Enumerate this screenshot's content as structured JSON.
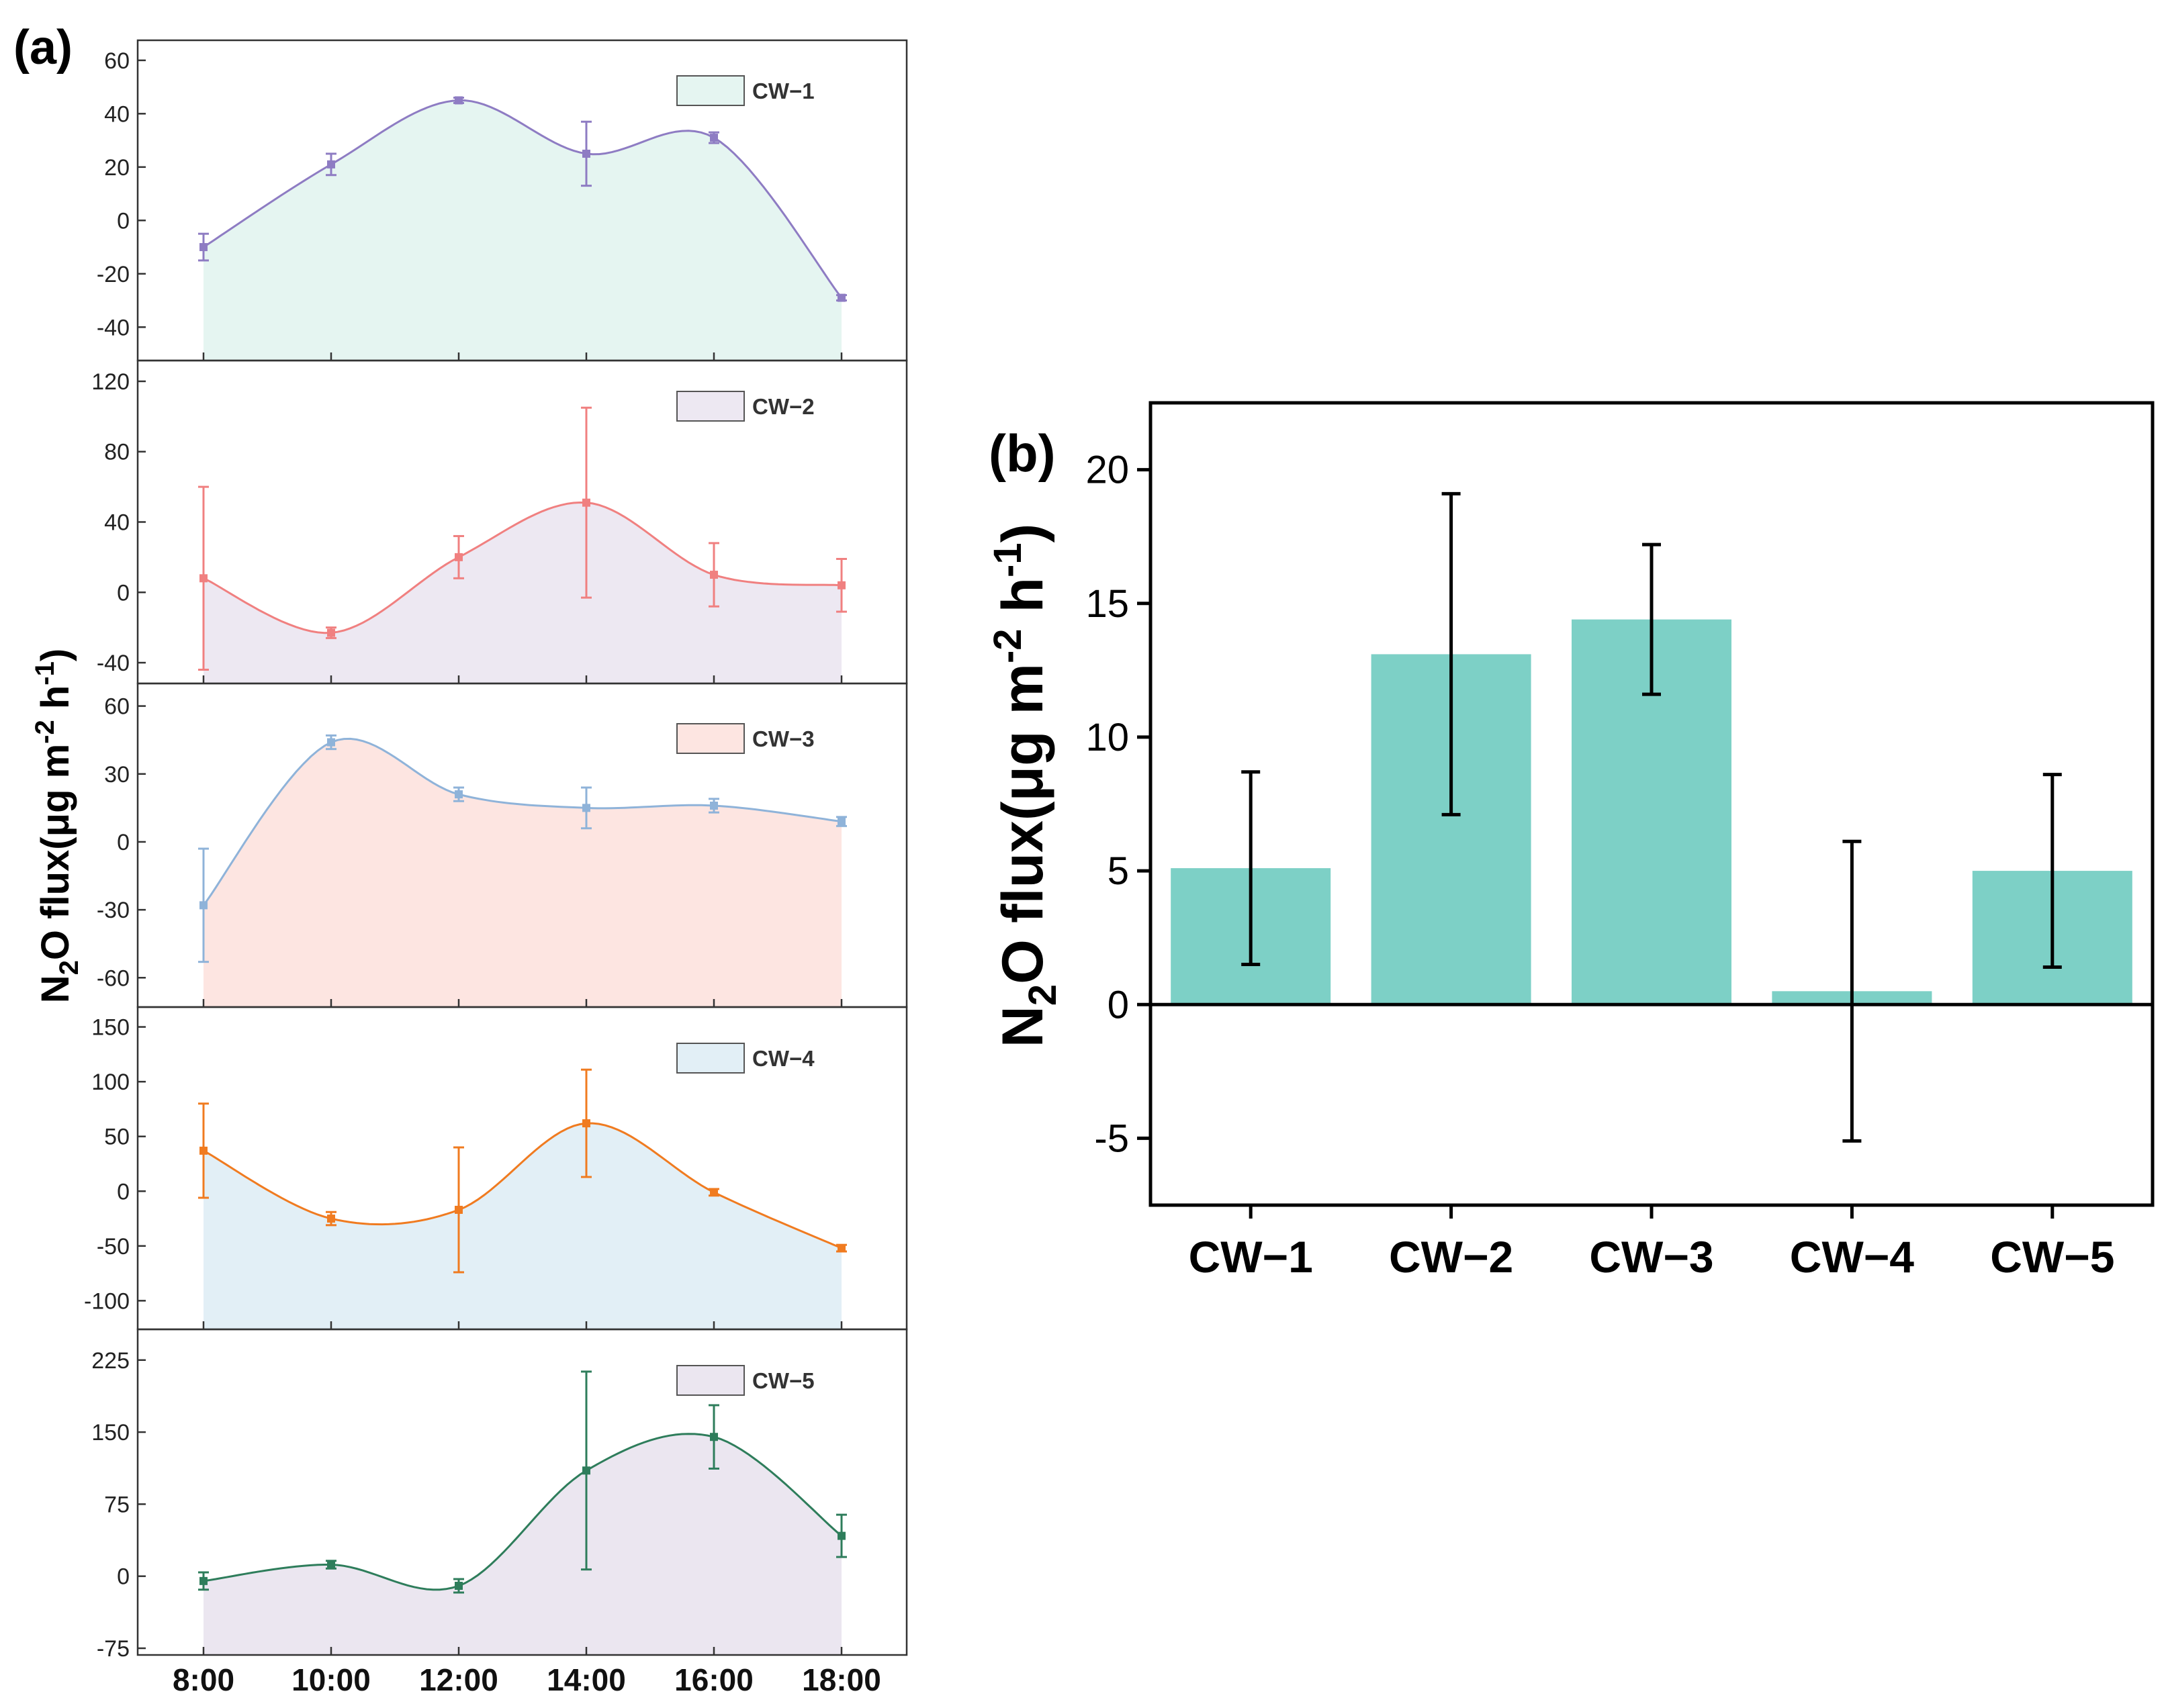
{
  "figure": {
    "panel_a_label": "(a)",
    "panel_b_label": "(b)",
    "ylabel_prefix": "N",
    "ylabel_sub": "2",
    "ylabel_mid": "O flux(μg m",
    "ylabel_sup1": "-2",
    "ylabel_mid2": " h",
    "ylabel_sup2": "-1",
    "ylabel_end": ")"
  },
  "chart_data": [
    {
      "type": "area",
      "panel": "(a)",
      "x": [
        "8:00",
        "10:00",
        "12:00",
        "14:00",
        "16:00",
        "18:00"
      ],
      "xlabel": "",
      "ylabel": "N2O flux(μg m-2 h-1)",
      "series": [
        {
          "name": "CW−1",
          "values": [
            -10,
            21,
            45,
            25,
            31,
            -29
          ],
          "errors": [
            5,
            4,
            1,
            12,
            2,
            1
          ],
          "ylim": [
            -50,
            65
          ],
          "yticks": [
            "60",
            "40",
            "20",
            "0",
            "-20",
            "-40"
          ],
          "ytick_values": [
            60,
            40,
            20,
            0,
            -20,
            -40
          ],
          "line_color": "#8e7cc3",
          "fill_color": "#e5f5f1"
        },
        {
          "name": "CW−2",
          "values": [
            8,
            -23,
            20,
            51,
            10,
            4
          ],
          "errors": [
            52,
            3,
            12,
            54,
            18,
            15
          ],
          "ylim": [
            -48,
            128
          ],
          "yticks": [
            "120",
            "80",
            "40",
            "0",
            "-40"
          ],
          "ytick_values": [
            120,
            80,
            40,
            0,
            -40
          ],
          "line_color": "#f08080",
          "fill_color": "#ede8f2"
        },
        {
          "name": "CW−3",
          "values": [
            -28,
            44,
            21,
            15,
            16,
            9
          ],
          "errors": [
            25,
            3,
            3,
            9,
            3,
            2
          ],
          "ylim": [
            -70,
            67
          ],
          "yticks": [
            "60",
            "30",
            "0",
            "-30",
            "-60"
          ],
          "ytick_values": [
            60,
            30,
            0,
            -30,
            -60
          ],
          "line_color": "#8fb3d9",
          "fill_color": "#fde5e1"
        },
        {
          "name": "CW−4",
          "values": [
            37,
            -25,
            -17,
            62,
            -1,
            -52
          ],
          "errors": [
            43,
            6,
            57,
            49,
            3,
            3
          ],
          "ylim": [
            -120,
            162
          ],
          "yticks": [
            "150",
            "100",
            "50",
            "0",
            "-50",
            "-100"
          ],
          "ytick_values": [
            150,
            100,
            50,
            0,
            -50,
            -100
          ],
          "line_color": "#f07b20",
          "fill_color": "#e2eff6"
        },
        {
          "name": "CW−5",
          "values": [
            -5,
            12,
            -10,
            110,
            145,
            42
          ],
          "errors": [
            9,
            4,
            7,
            103,
            33,
            22
          ],
          "ylim": [
            -75,
            250
          ],
          "yticks": [
            "225",
            "150",
            "75",
            "0",
            "-75"
          ],
          "ytick_values": [
            225,
            150,
            75,
            0,
            -75
          ],
          "line_color": "#2e7d5b",
          "fill_color": "#ebe6f0"
        }
      ]
    },
    {
      "type": "bar",
      "panel": "(b)",
      "categories": [
        "CW−1",
        "CW−2",
        "CW−3",
        "CW−4",
        "CW−5"
      ],
      "values": [
        5.1,
        13.1,
        14.4,
        0.5,
        5.0
      ],
      "errors": [
        3.6,
        6.0,
        2.8,
        5.6,
        3.6
      ],
      "ylim": [
        -7.5,
        22.5
      ],
      "yticks": [
        "20",
        "15",
        "10",
        "5",
        "0",
        "-5"
      ],
      "ytick_values": [
        20,
        15,
        10,
        5,
        0,
        -5
      ],
      "bar_color": "#7dd0c6",
      "ylabel": "N2O flux(μg m-2 h-1)"
    }
  ]
}
